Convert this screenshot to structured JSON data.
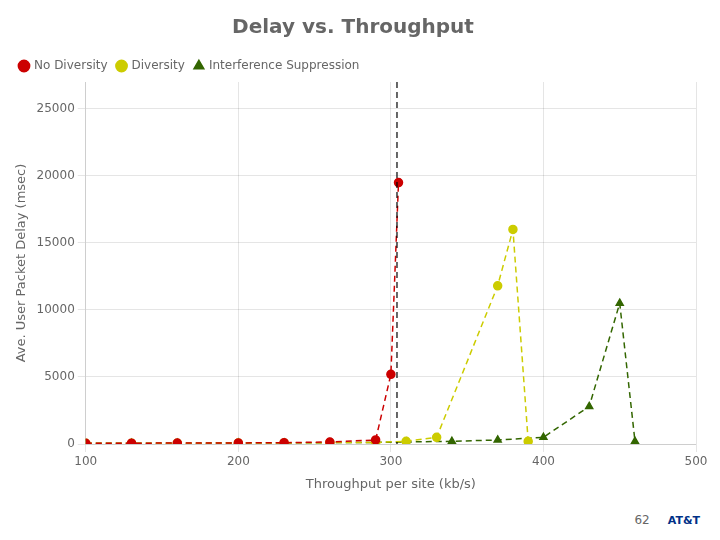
{
  "chart_data": {
    "type": "line",
    "title": "Delay vs. Throughput",
    "x_label": "Throughput per site (kb/s)",
    "y_label": "Ave. User Packet Delay (msec)",
    "xlim": [
      100,
      500
    ],
    "xticks": [
      100,
      200,
      300,
      400,
      500
    ],
    "ylim": [
      0,
      27000
    ],
    "yticks": [
      0,
      5000,
      10000,
      15000,
      20000,
      25000
    ],
    "grid": true,
    "legend": "upper left",
    "series": [
      {
        "name": "No Diversity",
        "color": "#cc0000",
        "marker": "circle",
        "line_style": "dashed",
        "x": [
          100,
          130,
          160,
          200,
          230,
          260,
          290,
          300,
          305
        ],
        "values": [
          50,
          60,
          70,
          80,
          100,
          150,
          300,
          5200,
          19500
        ]
      },
      {
        "name": "Diversity",
        "color": "#cccc00",
        "marker": "circle",
        "line_style": "dashed",
        "x": [
          100,
          130,
          160,
          200,
          230,
          260,
          290,
          310,
          330,
          370,
          380,
          390
        ],
        "values": [
          50,
          55,
          60,
          70,
          80,
          100,
          120,
          200,
          500,
          11800,
          16000,
          200
        ]
      },
      {
        "name": "Interference Suppression",
        "color": "#336600",
        "marker": "triangle",
        "line_style": "dashed",
        "x": [
          100,
          130,
          160,
          200,
          230,
          260,
          290,
          310,
          340,
          370,
          400,
          430,
          450,
          460
        ],
        "values": [
          50,
          55,
          60,
          70,
          80,
          100,
          120,
          150,
          200,
          300,
          500,
          2800,
          10500,
          200
        ]
      }
    ],
    "vline_x": 304,
    "annotations": [
      {
        "text": "62"
      },
      {
        "text": "AT&T",
        "color": "#003087"
      }
    ]
  }
}
